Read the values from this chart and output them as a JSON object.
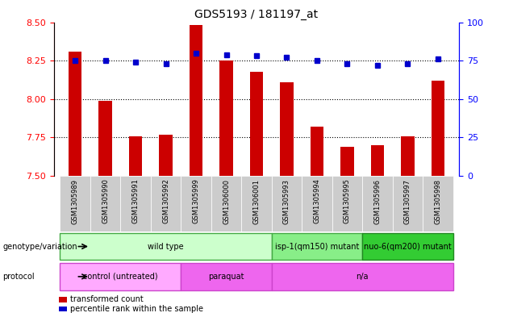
{
  "title": "GDS5193 / 181197_at",
  "samples": [
    "GSM1305989",
    "GSM1305990",
    "GSM1305991",
    "GSM1305992",
    "GSM1305999",
    "GSM1306000",
    "GSM1306001",
    "GSM1305993",
    "GSM1305994",
    "GSM1305995",
    "GSM1305996",
    "GSM1305997",
    "GSM1305998"
  ],
  "transformed_count": [
    8.31,
    7.99,
    7.76,
    7.77,
    8.48,
    8.25,
    8.18,
    8.11,
    7.82,
    7.69,
    7.7,
    7.76,
    8.12
  ],
  "percentile_rank": [
    75,
    75,
    74,
    73,
    80,
    79,
    78,
    77,
    75,
    73,
    72,
    73,
    76
  ],
  "ylim_left": [
    7.5,
    8.5
  ],
  "ylim_right": [
    0,
    100
  ],
  "yticks_left": [
    7.5,
    7.75,
    8.0,
    8.25,
    8.5
  ],
  "yticks_right": [
    0,
    25,
    50,
    75,
    100
  ],
  "grid_lines": [
    7.75,
    8.0,
    8.25
  ],
  "bar_color": "#cc0000",
  "dot_color": "#0000cc",
  "genotype_groups": [
    {
      "text": "wild type",
      "start": 0,
      "end": 6,
      "color": "#ccffcc",
      "border": "#44aa44"
    },
    {
      "text": "isp-1(qm150) mutant",
      "start": 7,
      "end": 9,
      "color": "#88ee88",
      "border": "#44aa44"
    },
    {
      "text": "nuo-6(qm200) mutant",
      "start": 10,
      "end": 12,
      "color": "#33cc33",
      "border": "#228822"
    }
  ],
  "protocol_groups": [
    {
      "text": "control (untreated)",
      "start": 0,
      "end": 3,
      "color": "#ffaaff",
      "border": "#cc44cc"
    },
    {
      "text": "paraquat",
      "start": 4,
      "end": 6,
      "color": "#ee66ee",
      "border": "#cc44cc"
    },
    {
      "text": "n/a",
      "start": 7,
      "end": 12,
      "color": "#ee66ee",
      "border": "#cc44cc"
    }
  ],
  "legend_items": [
    {
      "color": "#cc0000",
      "label": "transformed count"
    },
    {
      "color": "#0000cc",
      "label": "percentile rank within the sample"
    }
  ],
  "sample_bg": "#cccccc",
  "geno_label": "genotype/variation",
  "proto_label": "protocol"
}
